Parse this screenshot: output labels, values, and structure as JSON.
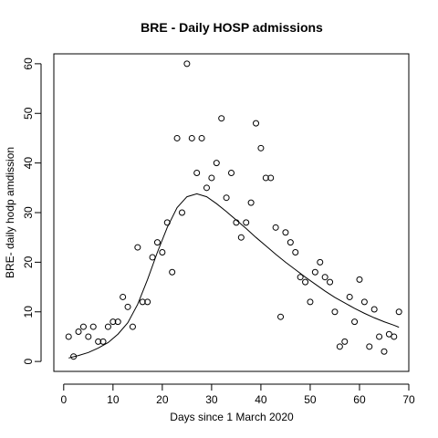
{
  "chart_data": {
    "type": "scatter",
    "title": "BRE - Daily HOSP admissions",
    "xlabel": "Days since 1 March 2020",
    "ylabel": "BRE- daily hodp amdission",
    "xlim": [
      -2,
      70
    ],
    "ylim": [
      -2,
      62
    ],
    "x_ticks": [
      0,
      10,
      20,
      30,
      40,
      50,
      60,
      70
    ],
    "y_ticks": [
      0,
      10,
      20,
      30,
      40,
      50,
      60
    ],
    "grid": false,
    "legend": "none",
    "series": [
      {
        "type": "scatter",
        "marker": "open-circle",
        "points": [
          [
            1,
            5
          ],
          [
            2,
            1
          ],
          [
            3,
            6
          ],
          [
            4,
            7
          ],
          [
            5,
            5
          ],
          [
            6,
            7
          ],
          [
            7,
            4
          ],
          [
            8,
            4
          ],
          [
            9,
            7
          ],
          [
            10,
            8
          ],
          [
            11,
            8
          ],
          [
            12,
            13
          ],
          [
            13,
            11
          ],
          [
            14,
            7
          ],
          [
            15,
            23
          ],
          [
            16,
            12
          ],
          [
            17,
            12
          ],
          [
            18,
            21
          ],
          [
            19,
            24
          ],
          [
            20,
            22
          ],
          [
            21,
            28
          ],
          [
            22,
            18
          ],
          [
            23,
            45
          ],
          [
            24,
            30
          ],
          [
            25,
            60
          ],
          [
            26,
            45
          ],
          [
            27,
            38
          ],
          [
            28,
            45
          ],
          [
            29,
            35
          ],
          [
            30,
            37
          ],
          [
            31,
            40
          ],
          [
            32,
            49
          ],
          [
            33,
            33
          ],
          [
            34,
            38
          ],
          [
            35,
            28
          ],
          [
            36,
            25
          ],
          [
            37,
            28
          ],
          [
            38,
            32
          ],
          [
            39,
            48
          ],
          [
            40,
            43
          ],
          [
            41,
            37
          ],
          [
            42,
            37
          ],
          [
            43,
            27
          ],
          [
            44,
            9
          ],
          [
            45,
            26
          ],
          [
            46,
            24
          ],
          [
            47,
            22
          ],
          [
            48,
            17
          ],
          [
            49,
            16
          ],
          [
            50,
            12
          ],
          [
            51,
            18
          ],
          [
            52,
            20
          ],
          [
            53,
            17
          ],
          [
            54,
            16
          ],
          [
            55,
            10
          ],
          [
            56,
            3
          ],
          [
            57,
            4
          ],
          [
            58,
            13
          ],
          [
            59,
            8
          ],
          [
            60,
            16.5
          ],
          [
            61,
            12
          ],
          [
            62,
            3
          ],
          [
            63,
            10.5
          ],
          [
            64,
            5
          ],
          [
            65,
            2
          ],
          [
            66,
            5.5
          ],
          [
            67,
            5
          ],
          [
            68,
            10
          ]
        ]
      },
      {
        "type": "line",
        "style": "solid",
        "points": [
          [
            1,
            0.7
          ],
          [
            3,
            1.2
          ],
          [
            5,
            1.8
          ],
          [
            7,
            2.7
          ],
          [
            9,
            3.8
          ],
          [
            11,
            5.5
          ],
          [
            13,
            7.8
          ],
          [
            15,
            11.5
          ],
          [
            17,
            16.5
          ],
          [
            19,
            22
          ],
          [
            21,
            27
          ],
          [
            23,
            31
          ],
          [
            25,
            33.2
          ],
          [
            27,
            33.8
          ],
          [
            29,
            33.2
          ],
          [
            31,
            31.8
          ],
          [
            33,
            30.2
          ],
          [
            35,
            28.5
          ],
          [
            37,
            26.8
          ],
          [
            39,
            25
          ],
          [
            41,
            23.3
          ],
          [
            43,
            21.6
          ],
          [
            45,
            20
          ],
          [
            47,
            18.5
          ],
          [
            49,
            17
          ],
          [
            51,
            15.6
          ],
          [
            53,
            14.2
          ],
          [
            55,
            12.9
          ],
          [
            57,
            11.8
          ],
          [
            59,
            10.7
          ],
          [
            61,
            9.7
          ],
          [
            63,
            8.8
          ],
          [
            65,
            8
          ],
          [
            67,
            7.3
          ],
          [
            68,
            6.9
          ]
        ]
      }
    ]
  }
}
